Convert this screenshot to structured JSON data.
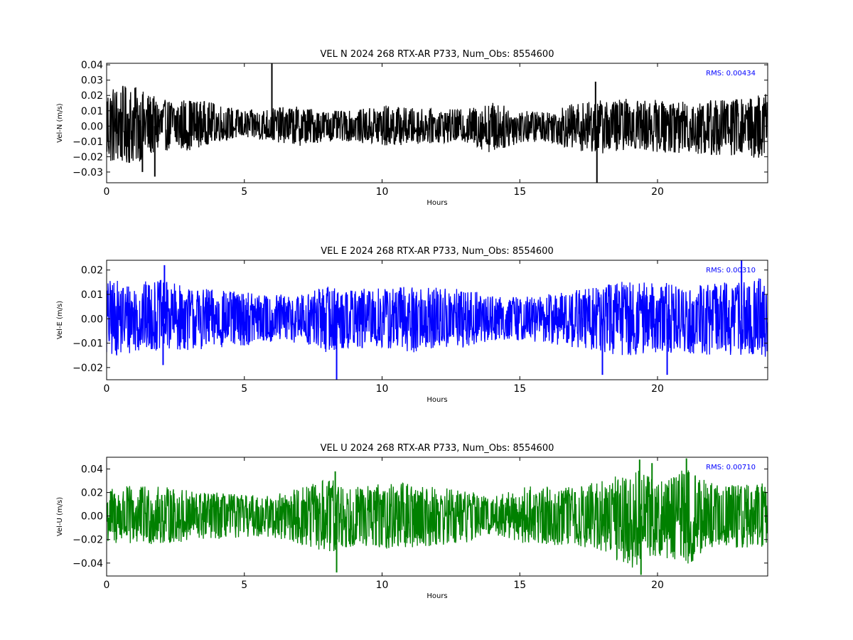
{
  "chart_data": [
    {
      "type": "line",
      "title": "VEL N 2024 268 RTX-AR  P733, Num_Obs: 8554600",
      "xlabel": "Hours",
      "ylabel": "Vel-N (m/s)",
      "xlim": [
        0,
        24
      ],
      "ylim": [
        -0.037,
        0.041
      ],
      "xticks": [
        0,
        5,
        10,
        15,
        20
      ],
      "yticks": [
        -0.03,
        -0.02,
        -0.01,
        0.0,
        0.01,
        0.02,
        0.03,
        0.04
      ],
      "ytick_labels": [
        "−0.03",
        "−0.02",
        "−0.01",
        "0.00",
        "0.01",
        "0.02",
        "0.03",
        "0.04"
      ],
      "xtick_labels": [
        "0",
        "5",
        "10",
        "15",
        "20"
      ],
      "annotation": "RMS:  0.00434",
      "annotation_color": "#0000ff",
      "line_color": "#000000",
      "series": [
        {
          "x": [
            0,
            1,
            2,
            3,
            4,
            5,
            6,
            7,
            8,
            9,
            10,
            11,
            12,
            13,
            14,
            15,
            16,
            17,
            18,
            19,
            20,
            21,
            22,
            23,
            24
          ],
          "upper": [
            0.027,
            0.026,
            0.017,
            0.018,
            0.015,
            0.01,
            0.012,
            0.013,
            0.01,
            0.01,
            0.014,
            0.012,
            0.011,
            0.011,
            0.016,
            0.01,
            0.01,
            0.015,
            0.017,
            0.018,
            0.017,
            0.016,
            0.018,
            0.018,
            0.022
          ],
          "lower": [
            -0.025,
            -0.025,
            -0.016,
            -0.016,
            -0.01,
            -0.008,
            -0.01,
            -0.013,
            -0.01,
            -0.01,
            -0.014,
            -0.012,
            -0.011,
            -0.011,
            -0.018,
            -0.011,
            -0.01,
            -0.016,
            -0.018,
            -0.015,
            -0.017,
            -0.018,
            -0.02,
            -0.019,
            -0.023
          ],
          "spikes": [
            {
              "x": 6.0,
              "y": 0.041
            },
            {
              "x": 1.75,
              "y": -0.033
            },
            {
              "x": 17.8,
              "y": -0.037
            },
            {
              "x": 17.75,
              "y": 0.029
            },
            {
              "x": 1.3,
              "y": -0.03
            }
          ]
        }
      ]
    },
    {
      "type": "line",
      "title": "VEL E 2024 268 RTX-AR  P733, Num_Obs: 8554600",
      "xlabel": "Hours",
      "ylabel": "Vel-E (m/s)",
      "xlim": [
        0,
        24
      ],
      "ylim": [
        -0.025,
        0.024
      ],
      "xticks": [
        0,
        5,
        10,
        15,
        20
      ],
      "yticks": [
        -0.02,
        -0.01,
        0.0,
        0.01,
        0.02
      ],
      "ytick_labels": [
        "−0.02",
        "−0.01",
        "0.00",
        "0.01",
        "0.02"
      ],
      "xtick_labels": [
        "0",
        "5",
        "10",
        "15",
        "20"
      ],
      "annotation": "RMS:  0.00310",
      "annotation_color": "#0000ff",
      "line_color": "#0000ff",
      "series": [
        {
          "x": [
            0,
            1,
            2,
            3,
            4,
            5,
            6,
            7,
            8,
            9,
            10,
            11,
            12,
            13,
            14,
            15,
            16,
            17,
            18,
            19,
            20,
            21,
            22,
            23,
            24
          ],
          "upper": [
            0.016,
            0.015,
            0.016,
            0.013,
            0.012,
            0.011,
            0.01,
            0.01,
            0.014,
            0.012,
            0.013,
            0.014,
            0.013,
            0.012,
            0.01,
            0.009,
            0.01,
            0.012,
            0.014,
            0.016,
            0.015,
            0.014,
            0.015,
            0.016,
            0.017
          ],
          "lower": [
            -0.016,
            -0.014,
            -0.013,
            -0.013,
            -0.012,
            -0.011,
            -0.01,
            -0.01,
            -0.014,
            -0.012,
            -0.013,
            -0.014,
            -0.013,
            -0.012,
            -0.009,
            -0.009,
            -0.01,
            -0.012,
            -0.015,
            -0.015,
            -0.014,
            -0.014,
            -0.015,
            -0.015,
            -0.016
          ],
          "spikes": [
            {
              "x": 2.1,
              "y": 0.022
            },
            {
              "x": 8.35,
              "y": -0.025
            },
            {
              "x": 23.05,
              "y": 0.024
            },
            {
              "x": 18.0,
              "y": -0.023
            },
            {
              "x": 20.35,
              "y": -0.023
            },
            {
              "x": 2.05,
              "y": -0.019
            }
          ]
        }
      ]
    },
    {
      "type": "line",
      "title": "VEL U 2024 268 RTX-AR  P733, Num_Obs: 8554600",
      "xlabel": "Hours",
      "ylabel": "Vel-U (m/s)",
      "xlim": [
        0,
        24
      ],
      "ylim": [
        -0.051,
        0.05
      ],
      "xticks": [
        0,
        5,
        10,
        15,
        20
      ],
      "yticks": [
        -0.04,
        -0.02,
        0.0,
        0.02,
        0.04
      ],
      "ytick_labels": [
        "−0.04",
        "−0.02",
        "0.00",
        "0.02",
        "0.04"
      ],
      "xtick_labels": [
        "0",
        "5",
        "10",
        "15",
        "20"
      ],
      "annotation": "RMS:  0.00710",
      "annotation_color": "#0000ff",
      "line_color": "#008000",
      "series": [
        {
          "x": [
            0,
            1,
            2,
            3,
            4,
            5,
            6,
            7,
            8,
            9,
            10,
            11,
            12,
            13,
            14,
            15,
            16,
            17,
            18,
            19,
            20,
            21,
            22,
            23,
            24
          ],
          "upper": [
            0.024,
            0.026,
            0.025,
            0.022,
            0.02,
            0.018,
            0.018,
            0.024,
            0.032,
            0.025,
            0.028,
            0.028,
            0.025,
            0.023,
            0.016,
            0.024,
            0.027,
            0.025,
            0.03,
            0.042,
            0.033,
            0.041,
            0.028,
            0.027,
            0.028
          ],
          "lower": [
            -0.024,
            -0.026,
            -0.024,
            -0.022,
            -0.02,
            -0.018,
            -0.018,
            -0.024,
            -0.035,
            -0.025,
            -0.028,
            -0.028,
            -0.025,
            -0.023,
            -0.015,
            -0.023,
            -0.025,
            -0.026,
            -0.03,
            -0.045,
            -0.033,
            -0.043,
            -0.028,
            -0.027,
            -0.026
          ],
          "spikes": [
            {
              "x": 8.3,
              "y": 0.038
            },
            {
              "x": 8.35,
              "y": -0.048
            },
            {
              "x": 19.4,
              "y": -0.05
            },
            {
              "x": 19.35,
              "y": 0.048
            },
            {
              "x": 21.05,
              "y": 0.049
            },
            {
              "x": 19.8,
              "y": 0.045
            }
          ]
        }
      ]
    }
  ]
}
